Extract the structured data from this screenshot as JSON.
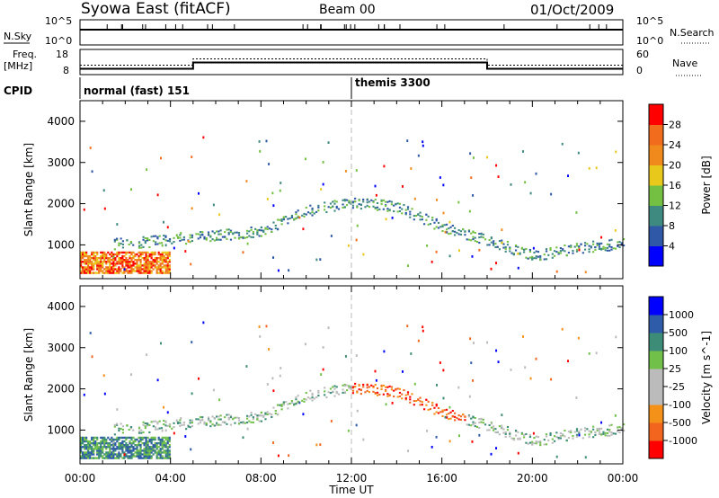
{
  "header": {
    "title": "Syowa East (fitACF)",
    "beam": "Beam 00",
    "date": "01/Oct/2009"
  },
  "top_panels": {
    "nsky_label": "N.Sky",
    "nsky_ticks": [
      "10^5",
      "10^0"
    ],
    "nsearch_label": "N.Search",
    "freq_label": "Freq.",
    "freq_unit": "[MHz]",
    "freq_ticks": [
      "18",
      "8"
    ],
    "nave_label": "Nave",
    "nave_ticks": [
      "60",
      "0"
    ],
    "cpid_label": "CPID",
    "cpid_segments": [
      {
        "label": "normal (fast) 151",
        "start_hour": 0
      },
      {
        "label": "themis 3300",
        "start_hour": 12
      }
    ],
    "freq_steps": [
      {
        "from_hour": 0,
        "to_hour": 5,
        "freq_mhz": 10.3
      },
      {
        "from_hour": 5,
        "to_hour": 18,
        "freq_mhz": 12.8
      },
      {
        "from_hour": 18,
        "to_hour": 24,
        "freq_mhz": 10.3
      }
    ]
  },
  "x_axis": {
    "label": "Time UT",
    "ticks": [
      "00:00",
      "04:00",
      "08:00",
      "12:00",
      "16:00",
      "20:00",
      "00:00"
    ]
  },
  "colors": {
    "power_scale": [
      "#0000ff",
      "#2f58a6",
      "#3f8a80",
      "#74c043",
      "#e8c81b",
      "#f08a1c",
      "#f26c1e",
      "#ff0000"
    ],
    "velocity_scale": [
      "#ff0000",
      "#f2651e",
      "#f39119",
      "#bbbbbb",
      "#bbbbbb",
      "#71c04a",
      "#3d8c77",
      "#2f5ca8",
      "#0000ff"
    ]
  },
  "chart_data": [
    {
      "type": "heatmap",
      "title": "",
      "ylabel": "Slant Range [km]",
      "xlabel": "",
      "x_range_hours": [
        0,
        24
      ],
      "ylim": [
        180,
        4500
      ],
      "yticks": [
        "1000",
        "2000",
        "3000",
        "4000"
      ],
      "colorbar": {
        "label": "Power [dB]",
        "ticks": [
          "4",
          "8",
          "12",
          "16",
          "20",
          "24",
          "28"
        ],
        "range": [
          0,
          30
        ]
      },
      "features": [
        {
          "name": "near-range band",
          "start_hour": 0,
          "end_hour": 4,
          "range_km": [
            300,
            800
          ],
          "value_db": 22
        },
        {
          "name": "ionospheric echo track",
          "points": [
            [
              2,
              1000
            ],
            [
              4,
              1100
            ],
            [
              6,
              1200
            ],
            [
              8,
              1300
            ],
            [
              10,
              1800
            ],
            [
              12,
              2000
            ],
            [
              14,
              1900
            ],
            [
              16,
              1400
            ],
            [
              18,
              1100
            ],
            [
              20,
              700
            ],
            [
              22,
              900
            ],
            [
              24,
              1000
            ]
          ],
          "value_db": 8
        }
      ]
    },
    {
      "type": "heatmap",
      "title": "",
      "ylabel": "Slant Range [km]",
      "xlabel": "Time UT",
      "x_range_hours": [
        0,
        24
      ],
      "ylim": [
        180,
        4500
      ],
      "yticks": [
        "1000",
        "2000",
        "3000",
        "4000"
      ],
      "colorbar": {
        "label": "Velocity [m s^-1]",
        "ticks": [
          "1000",
          "500",
          "100",
          "25",
          "-25",
          "-100",
          "-500",
          "-1000"
        ],
        "range": [
          -1000,
          1000
        ]
      },
      "features": [
        {
          "name": "near-range band",
          "start_hour": 0,
          "end_hour": 4,
          "range_km": [
            300,
            800
          ],
          "value_ms": 200
        },
        {
          "name": "ionospheric echo track",
          "points": [
            [
              2,
              1000
            ],
            [
              4,
              1100
            ],
            [
              6,
              1200
            ],
            [
              8,
              1300
            ],
            [
              10,
              1800
            ],
            [
              12,
              2000
            ],
            [
              14,
              1900
            ],
            [
              16,
              1400
            ],
            [
              18,
              1100
            ],
            [
              20,
              700
            ],
            [
              22,
              900
            ],
            [
              24,
              1000
            ]
          ],
          "value_ms": -150
        }
      ]
    }
  ]
}
